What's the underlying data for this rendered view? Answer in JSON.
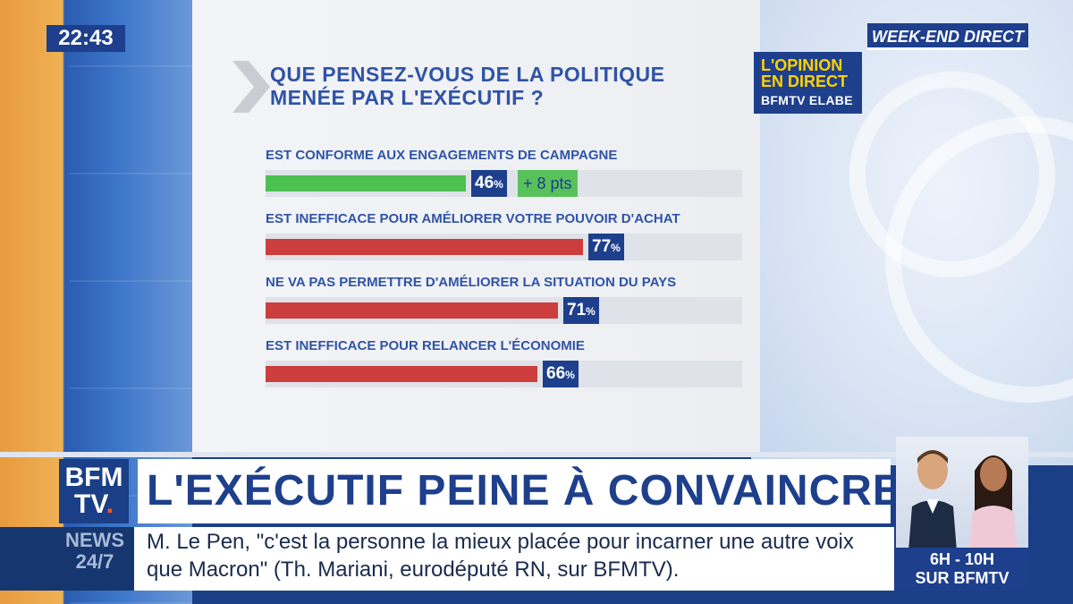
{
  "clock": "22:43",
  "program_tag": "WEEK-END DIRECT",
  "badge": {
    "line1": "L'OPINION",
    "line2": "EN DIRECT",
    "line3": "BFMTV ELABE"
  },
  "question": {
    "line1": "QUE PENSEZ-VOUS DE LA POLITIQUE",
    "line2": "MENÉE PAR L'EXÉCUTIF ?"
  },
  "colors": {
    "navy": "#1d3f8c",
    "green": "#4cc150",
    "red": "#cc3d3d",
    "track": "#dfe2e8"
  },
  "chart_data": {
    "type": "bar",
    "orientation": "horizontal",
    "categories": [
      "EST CONFORME AUX ENGAGEMENTS DE CAMPAGNE",
      "EST INEFFICACE POUR AMÉLIORER VOTRE POUVOIR D'ACHAT",
      "NE VA  PAS PERMETTRE D'AMÉLIORER LA SITUATION DU PAYS",
      "EST INEFFICACE POUR RELANCER L'ÉCONOMIE"
    ],
    "values": [
      46,
      77,
      71,
      66
    ],
    "value_labels": [
      "46",
      "77",
      "71",
      "66"
    ],
    "unit": "%",
    "bar_colors": [
      "green",
      "red",
      "red",
      "red"
    ],
    "annotations": [
      {
        "category_index": 0,
        "text": "+ 8 pts"
      }
    ],
    "xlim": [
      0,
      100
    ]
  },
  "lower_third": {
    "logo_line1": "BFM",
    "logo_line2": "TV",
    "headline": "L'EXÉCUTIF PEINE À CONVAINCRE",
    "news_line1": "NEWS",
    "news_line2": "24/7",
    "ticker": "M. Le Pen, \"c'est la personne la mieux placée pour incarner une autre voix que Macron\" (Th. Mariani, eurodéputé RN, sur BFMTV).",
    "show_line1": "6H - 10H",
    "show_line2": "SUR BFMTV"
  }
}
